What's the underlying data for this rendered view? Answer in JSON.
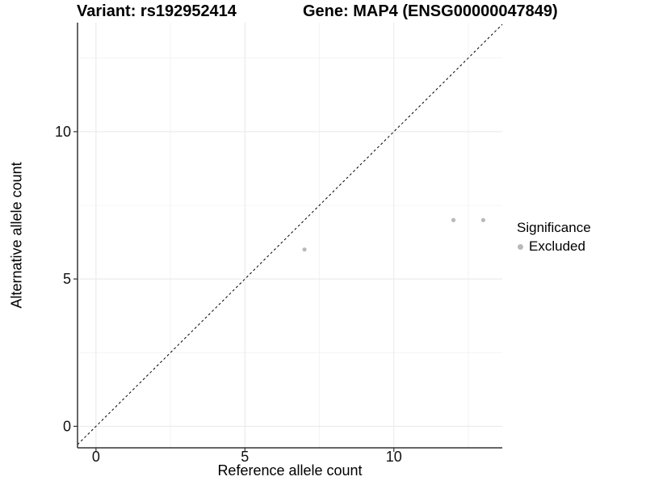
{
  "header": {
    "variant_title": "Variant: rs192952414",
    "gene_title": "Gene: MAP4 (ENSG00000047849)"
  },
  "chart_data": {
    "type": "scatter",
    "xlabel": "Reference allele count",
    "ylabel": "Alternative allele count",
    "xlim": [
      -0.62,
      13.64
    ],
    "ylim": [
      -0.73,
      13.7
    ],
    "xticks": [
      0,
      5,
      10
    ],
    "yticks": [
      0,
      5,
      10
    ],
    "minor_ticks_x": [
      2.5,
      7.5,
      12.5
    ],
    "minor_ticks_y": [
      2.5,
      7.5,
      12.5
    ],
    "grid": true,
    "reference_line": {
      "type": "identity",
      "slope": 1,
      "intercept": 0,
      "style": "dashed"
    },
    "series": [
      {
        "name": "Excluded",
        "points": [
          {
            "x": 7,
            "y": 6
          },
          {
            "x": 12,
            "y": 7
          },
          {
            "x": 13,
            "y": 7
          }
        ]
      }
    ],
    "legend": {
      "title": "Significance",
      "position": "right",
      "entries": [
        {
          "label": "Excluded",
          "color": "#b9b9b9",
          "marker": "circle-icon"
        }
      ]
    }
  },
  "colors": {
    "background": "#ffffff",
    "text": "#000000",
    "axis_line": "#333333",
    "tick_mark": "#333333",
    "grid_major": "#e8e8e8",
    "grid_minor": "#f4f4f4",
    "point": "#b9b9b9",
    "reference_line": "#000000"
  }
}
